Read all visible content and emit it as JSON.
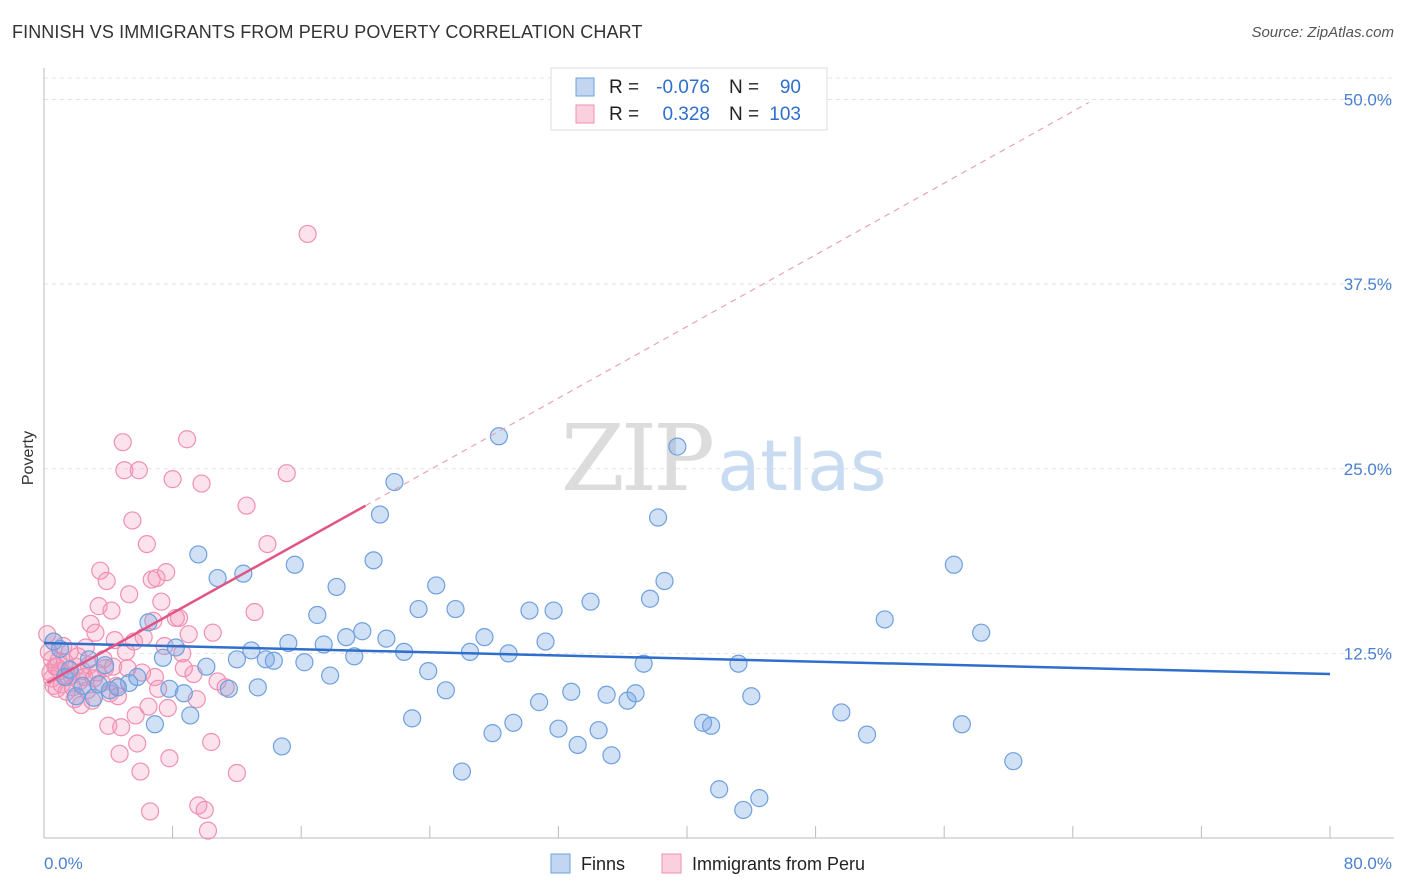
{
  "title": "FINNISH VS IMMIGRANTS FROM PERU POVERTY CORRELATION CHART",
  "source": "Source: ZipAtlas.com",
  "watermark": {
    "zip": "ZIP",
    "atlas": "atlas"
  },
  "chart_data": {
    "type": "scatter",
    "xlabel": "",
    "ylabel": "Poverty",
    "xlim": [
      0,
      80
    ],
    "ylim": [
      0,
      52
    ],
    "x_tick_labels": [
      "0.0%",
      "80.0%"
    ],
    "y_ticks": [
      12.5,
      25.0,
      37.5,
      50.0
    ],
    "y_tick_labels": [
      "12.5%",
      "25.0%",
      "37.5%",
      "50.0%"
    ],
    "grid": true,
    "legend": {
      "position": "top-center"
    },
    "stats": [
      {
        "r_label": "R =",
        "r_value": "-0.076",
        "n_label": "N =",
        "n_value": "90"
      },
      {
        "r_label": "R =",
        "r_value": "0.328",
        "n_label": "N =",
        "n_value": "103"
      }
    ],
    "series": [
      {
        "name": "Finns",
        "color": "#6fa0e0",
        "line_color": "#2f6fcc",
        "trend": {
          "x": [
            0,
            80
          ],
          "y": [
            13.2,
            11.1
          ],
          "dashed_extension": null
        },
        "points": [
          [
            0.6,
            13.3
          ],
          [
            1.0,
            12.8
          ],
          [
            1.3,
            10.9
          ],
          [
            1.6,
            11.4
          ],
          [
            2.0,
            9.6
          ],
          [
            2.4,
            10.3
          ],
          [
            2.8,
            12.1
          ],
          [
            3.1,
            9.5
          ],
          [
            3.4,
            10.4
          ],
          [
            3.8,
            11.7
          ],
          [
            4.1,
            10.0
          ],
          [
            4.6,
            10.2
          ],
          [
            5.3,
            10.5
          ],
          [
            5.8,
            10.9
          ],
          [
            6.5,
            14.6
          ],
          [
            6.9,
            7.7
          ],
          [
            7.4,
            12.2
          ],
          [
            7.8,
            10.1
          ],
          [
            8.2,
            12.9
          ],
          [
            8.7,
            9.8
          ],
          [
            9.1,
            8.3
          ],
          [
            9.6,
            19.2
          ],
          [
            10.1,
            11.6
          ],
          [
            10.8,
            17.6
          ],
          [
            11.5,
            10.1
          ],
          [
            12.0,
            12.1
          ],
          [
            12.4,
            17.9
          ],
          [
            12.9,
            12.7
          ],
          [
            13.3,
            10.2
          ],
          [
            13.8,
            12.1
          ],
          [
            14.3,
            12.0
          ],
          [
            14.8,
            6.2
          ],
          [
            15.2,
            13.2
          ],
          [
            15.6,
            18.5
          ],
          [
            16.2,
            11.9
          ],
          [
            17.0,
            15.1
          ],
          [
            17.4,
            13.1
          ],
          [
            17.8,
            11.0
          ],
          [
            18.2,
            17.0
          ],
          [
            18.8,
            13.6
          ],
          [
            19.3,
            12.3
          ],
          [
            19.8,
            14.0
          ],
          [
            20.5,
            18.8
          ],
          [
            20.9,
            21.9
          ],
          [
            21.3,
            13.5
          ],
          [
            21.8,
            24.1
          ],
          [
            22.4,
            12.6
          ],
          [
            22.9,
            8.1
          ],
          [
            23.3,
            15.5
          ],
          [
            23.9,
            11.3
          ],
          [
            24.4,
            17.1
          ],
          [
            25.0,
            10.0
          ],
          [
            25.6,
            15.5
          ],
          [
            26.0,
            4.5
          ],
          [
            26.5,
            12.6
          ],
          [
            27.4,
            13.6
          ],
          [
            27.9,
            7.1
          ],
          [
            28.3,
            27.2
          ],
          [
            28.9,
            12.5
          ],
          [
            29.2,
            7.8
          ],
          [
            30.2,
            15.4
          ],
          [
            30.8,
            9.2
          ],
          [
            31.2,
            13.3
          ],
          [
            31.7,
            15.4
          ],
          [
            32.0,
            7.4
          ],
          [
            32.8,
            9.9
          ],
          [
            33.2,
            6.3
          ],
          [
            34.0,
            16.0
          ],
          [
            34.5,
            7.3
          ],
          [
            35.0,
            9.7
          ],
          [
            35.3,
            5.6
          ],
          [
            36.3,
            9.3
          ],
          [
            36.8,
            9.8
          ],
          [
            37.3,
            11.8
          ],
          [
            37.7,
            16.2
          ],
          [
            38.2,
            21.7
          ],
          [
            38.6,
            17.4
          ],
          [
            39.4,
            26.5
          ],
          [
            41.0,
            7.8
          ],
          [
            41.5,
            7.6
          ],
          [
            42.0,
            3.3
          ],
          [
            43.2,
            11.8
          ],
          [
            43.5,
            1.9
          ],
          [
            44.0,
            9.6
          ],
          [
            44.5,
            2.7
          ],
          [
            49.6,
            8.5
          ],
          [
            51.2,
            7.0
          ],
          [
            52.3,
            14.8
          ],
          [
            56.6,
            18.5
          ],
          [
            57.1,
            7.7
          ],
          [
            58.3,
            13.9
          ],
          [
            60.3,
            5.2
          ]
        ]
      },
      {
        "name": "Immigrants from Peru",
        "color": "#f090b0",
        "line_color": "#e05585",
        "trend": {
          "x": [
            0.2,
            20.0
          ],
          "y": [
            10.5,
            22.5
          ],
          "dashed_extension": {
            "x": [
              20.0,
              65.0
            ],
            "y": [
              22.5,
              49.8
            ]
          }
        },
        "points": [
          [
            0.2,
            13.8
          ],
          [
            0.3,
            12.6
          ],
          [
            0.4,
            11.2
          ],
          [
            0.5,
            10.8
          ],
          [
            0.6,
            13.3
          ],
          [
            0.7,
            11.6
          ],
          [
            0.8,
            10.1
          ],
          [
            0.9,
            12.0
          ],
          [
            1.0,
            11.3
          ],
          [
            1.1,
            10.4
          ],
          [
            1.2,
            13.0
          ],
          [
            1.3,
            11.9
          ],
          [
            1.4,
            9.9
          ],
          [
            1.5,
            10.9
          ],
          [
            1.6,
            12.6
          ],
          [
            1.7,
            11.0
          ],
          [
            1.8,
            10.2
          ],
          [
            1.9,
            9.4
          ],
          [
            2.0,
            11.6
          ],
          [
            2.1,
            12.3
          ],
          [
            2.2,
            10.6
          ],
          [
            2.3,
            9.0
          ],
          [
            2.4,
            11.3
          ],
          [
            2.5,
            10.9
          ],
          [
            2.6,
            12.9
          ],
          [
            2.7,
            10.0
          ],
          [
            2.8,
            11.7
          ],
          [
            2.9,
            14.5
          ],
          [
            3.0,
            9.3
          ],
          [
            3.1,
            10.8
          ],
          [
            3.2,
            13.9
          ],
          [
            3.3,
            11.2
          ],
          [
            3.4,
            15.7
          ],
          [
            3.5,
            18.1
          ],
          [
            3.6,
            10.5
          ],
          [
            3.7,
            12.1
          ],
          [
            3.8,
            11.5
          ],
          [
            3.9,
            17.4
          ],
          [
            4.0,
            7.6
          ],
          [
            4.1,
            9.8
          ],
          [
            4.2,
            15.4
          ],
          [
            4.3,
            11.6
          ],
          [
            4.4,
            13.4
          ],
          [
            4.5,
            10.3
          ],
          [
            4.6,
            9.6
          ],
          [
            4.7,
            5.7
          ],
          [
            4.8,
            7.5
          ],
          [
            4.9,
            26.8
          ],
          [
            5.0,
            24.9
          ],
          [
            5.1,
            12.6
          ],
          [
            5.2,
            11.5
          ],
          [
            5.3,
            16.5
          ],
          [
            5.5,
            21.5
          ],
          [
            5.6,
            13.3
          ],
          [
            5.7,
            8.3
          ],
          [
            5.8,
            6.4
          ],
          [
            5.9,
            24.9
          ],
          [
            6.0,
            4.5
          ],
          [
            6.1,
            11.2
          ],
          [
            6.2,
            13.6
          ],
          [
            6.4,
            19.9
          ],
          [
            6.5,
            8.9
          ],
          [
            6.6,
            1.8
          ],
          [
            6.7,
            17.5
          ],
          [
            6.8,
            14.7
          ],
          [
            6.9,
            10.9
          ],
          [
            7.0,
            17.6
          ],
          [
            7.1,
            10.1
          ],
          [
            7.3,
            16.0
          ],
          [
            7.5,
            13.0
          ],
          [
            7.6,
            18.0
          ],
          [
            7.7,
            8.8
          ],
          [
            7.8,
            5.4
          ],
          [
            8.0,
            24.3
          ],
          [
            8.2,
            14.9
          ],
          [
            8.4,
            14.9
          ],
          [
            8.6,
            12.5
          ],
          [
            8.7,
            11.5
          ],
          [
            8.9,
            27.0
          ],
          [
            9.0,
            13.8
          ],
          [
            9.3,
            11.1
          ],
          [
            9.5,
            9.4
          ],
          [
            9.6,
            2.2
          ],
          [
            9.8,
            24.0
          ],
          [
            10.0,
            1.9
          ],
          [
            10.2,
            0.5
          ],
          [
            10.4,
            6.5
          ],
          [
            10.5,
            13.9
          ],
          [
            10.8,
            10.6
          ],
          [
            11.3,
            10.2
          ],
          [
            12.0,
            4.4
          ],
          [
            12.6,
            22.5
          ],
          [
            13.1,
            15.3
          ],
          [
            13.9,
            19.9
          ],
          [
            15.1,
            24.7
          ],
          [
            16.4,
            40.9
          ],
          [
            0.6,
            10.3
          ],
          [
            0.5,
            12.1
          ],
          [
            0.8,
            11.6
          ]
        ]
      }
    ]
  }
}
